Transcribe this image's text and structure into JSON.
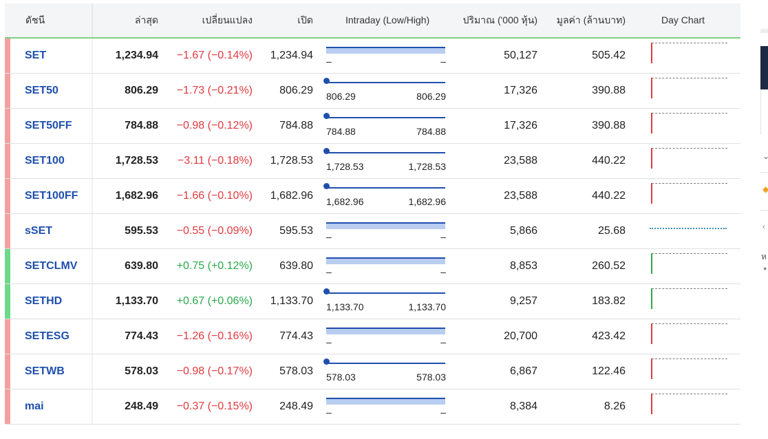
{
  "headers": {
    "name": "ดัชนี",
    "last": "ล่าสุด",
    "change": "เปลี่ยนแปลง",
    "open": "เปิด",
    "intraday": "Intraday (Low/High)",
    "volume": "ปริมาณ ('000 หุ้น)",
    "value": "มูลค่า (ล้านบาท)",
    "day_chart": "Day Chart"
  },
  "colors": {
    "down": "#e0393e",
    "up": "#2aa84a",
    "accent": "#1f4fad",
    "row_down": "#f4a0a0",
    "row_up": "#6fd98a"
  },
  "rows": [
    {
      "name": "SET",
      "last": "1,234.94",
      "change": "−1.67 (−0.14%)",
      "dir": "down",
      "open": "1,234.94",
      "low": "–",
      "high": "–",
      "marker": false,
      "volume": "50,127",
      "value": "505.42",
      "chart": "down"
    },
    {
      "name": "SET50",
      "last": "806.29",
      "change": "−1.73 (−0.21%)",
      "dir": "down",
      "open": "806.29",
      "low": "806.29",
      "high": "806.29",
      "marker": true,
      "volume": "17,326",
      "value": "390.88",
      "chart": "down"
    },
    {
      "name": "SET50FF",
      "last": "784.88",
      "change": "−0.98 (−0.12%)",
      "dir": "down",
      "open": "784.88",
      "low": "784.88",
      "high": "784.88",
      "marker": true,
      "volume": "17,326",
      "value": "390.88",
      "chart": "down"
    },
    {
      "name": "SET100",
      "last": "1,728.53",
      "change": "−3.11 (−0.18%)",
      "dir": "down",
      "open": "1,728.53",
      "low": "1,728.53",
      "high": "1,728.53",
      "marker": true,
      "volume": "23,588",
      "value": "440.22",
      "chart": "down"
    },
    {
      "name": "SET100FF",
      "last": "1,682.96",
      "change": "−1.66 (−0.10%)",
      "dir": "down",
      "open": "1,682.96",
      "low": "1,682.96",
      "high": "1,682.96",
      "marker": true,
      "volume": "23,588",
      "value": "440.22",
      "chart": "down"
    },
    {
      "name": "sSET",
      "last": "595.53",
      "change": "−0.55 (−0.09%)",
      "dir": "down",
      "open": "595.53",
      "low": "–",
      "high": "–",
      "marker": false,
      "volume": "5,866",
      "value": "25.68",
      "chart": "flat"
    },
    {
      "name": "SETCLMV",
      "last": "639.80",
      "change": "+0.75 (+0.12%)",
      "dir": "up",
      "open": "639.80",
      "low": "–",
      "high": "–",
      "marker": false,
      "volume": "8,853",
      "value": "260.52",
      "chart": "up"
    },
    {
      "name": "SETHD",
      "last": "1,133.70",
      "change": "+0.67 (+0.06%)",
      "dir": "up",
      "open": "1,133.70",
      "low": "1,133.70",
      "high": "1,133.70",
      "marker": true,
      "volume": "9,257",
      "value": "183.82",
      "chart": "up"
    },
    {
      "name": "SETESG",
      "last": "774.43",
      "change": "−1.26 (−0.16%)",
      "dir": "down",
      "open": "774.43",
      "low": "–",
      "high": "–",
      "marker": false,
      "volume": "20,700",
      "value": "423.42",
      "chart": "down"
    },
    {
      "name": "SETWB",
      "last": "578.03",
      "change": "−0.98 (−0.17%)",
      "dir": "down",
      "open": "578.03",
      "low": "578.03",
      "high": "578.03",
      "marker": true,
      "volume": "6,867",
      "value": "122.46",
      "chart": "down"
    },
    {
      "name": "mai",
      "last": "248.49",
      "change": "−0.37 (−0.15%)",
      "dir": "down",
      "open": "248.49",
      "low": "–",
      "high": "–",
      "marker": false,
      "volume": "8,384",
      "value": "8.26",
      "chart": "down"
    }
  ],
  "right_panel": {
    "text": "ห"
  }
}
